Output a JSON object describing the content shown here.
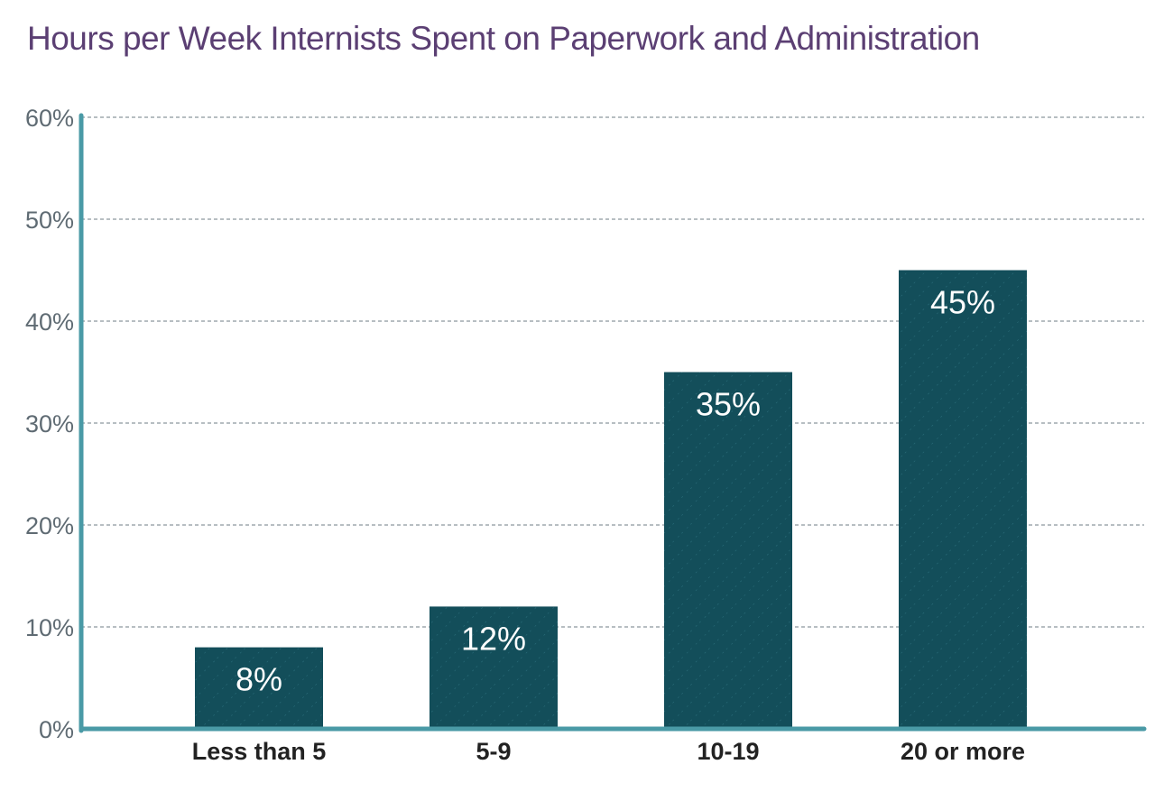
{
  "chart_data": {
    "type": "bar",
    "title": "Hours per Week Internists Spent on Paperwork and Administration",
    "categories": [
      "Less than 5",
      "5-9",
      "10-19",
      "20 or more"
    ],
    "values": [
      8,
      12,
      35,
      45
    ],
    "value_labels": [
      "8%",
      "12%",
      "35%",
      "45%"
    ],
    "y_ticks": [
      "0%",
      "10%",
      "20%",
      "30%",
      "40%",
      "50%",
      "60%"
    ],
    "ylim": [
      0,
      60
    ],
    "grid": true,
    "xlabel": "",
    "ylabel": "",
    "colors": {
      "bar": "#134e5a",
      "axis": "#4a9aa6",
      "grid": "#6f7e86",
      "title": "#5b3f73"
    }
  }
}
